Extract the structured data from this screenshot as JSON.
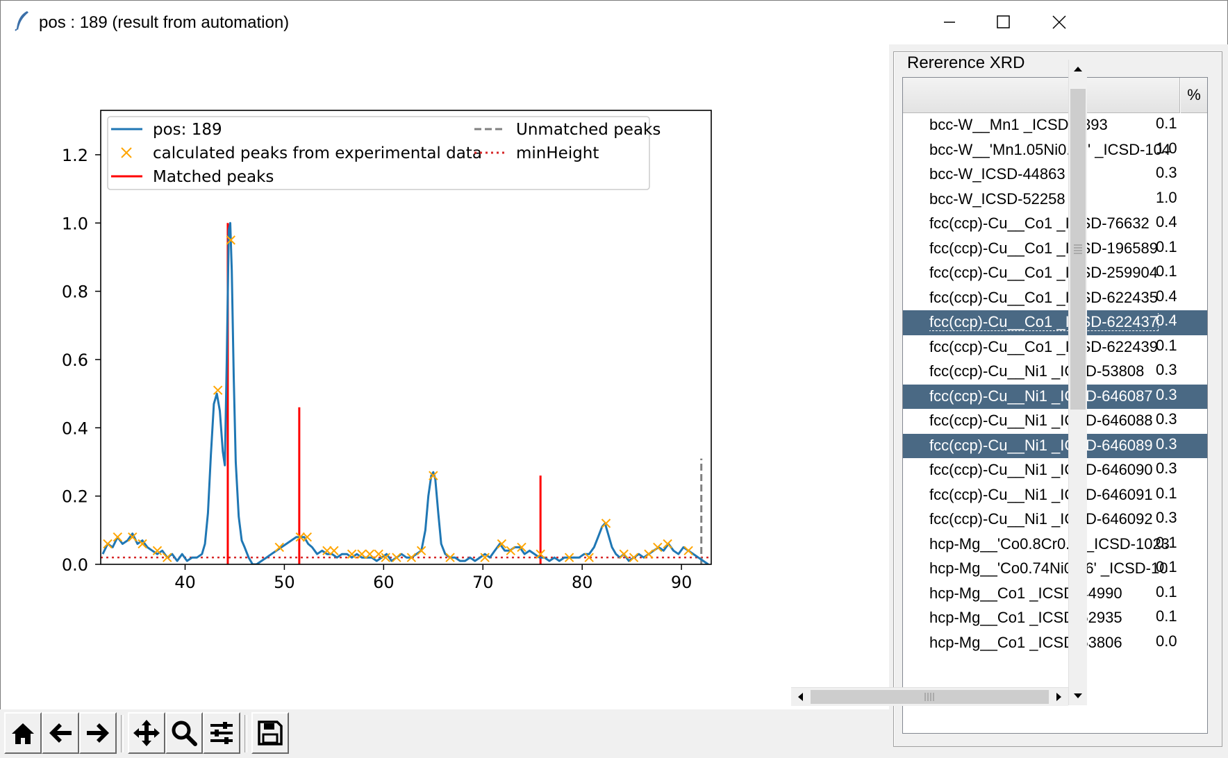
{
  "window": {
    "title": "pos : 189 (result from automation)"
  },
  "panel": {
    "group_label": "Rererence XRD",
    "columns": {
      "name": "",
      "pct": "%"
    },
    "rows": [
      {
        "name": "bcc-W__Mn1 _ICSD-5393",
        "pct": "0.1",
        "selected": false
      },
      {
        "name": "bcc-W__'Mn1.05Ni0.95' _ICSD-104",
        "pct": "1.0",
        "selected": false
      },
      {
        "name": "bcc-W_ICSD-44863",
        "pct": "0.3",
        "selected": false
      },
      {
        "name": "bcc-W_ICSD-52258",
        "pct": "1.0",
        "selected": false
      },
      {
        "name": "fcc(ccp)-Cu__Co1 _ICSD-76632",
        "pct": "0.4",
        "selected": false
      },
      {
        "name": "fcc(ccp)-Cu__Co1 _ICSD-196589",
        "pct": "0.1",
        "selected": false
      },
      {
        "name": "fcc(ccp)-Cu__Co1 _ICSD-259904",
        "pct": "0.1",
        "selected": false
      },
      {
        "name": "fcc(ccp)-Cu__Co1 _ICSD-622435",
        "pct": "0.4",
        "selected": false
      },
      {
        "name": "fcc(ccp)-Cu__Co1 _ICSD-622437",
        "pct": "0.4",
        "selected": true,
        "focused": true
      },
      {
        "name": "fcc(ccp)-Cu__Co1 _ICSD-622439",
        "pct": "0.1",
        "selected": false
      },
      {
        "name": "fcc(ccp)-Cu__Ni1 _ICSD-53808",
        "pct": "0.3",
        "selected": false
      },
      {
        "name": "fcc(ccp)-Cu__Ni1 _ICSD-646087",
        "pct": "0.3",
        "selected": true
      },
      {
        "name": "fcc(ccp)-Cu__Ni1 _ICSD-646088",
        "pct": "0.3",
        "selected": false
      },
      {
        "name": "fcc(ccp)-Cu__Ni1 _ICSD-646089",
        "pct": "0.3",
        "selected": true
      },
      {
        "name": "fcc(ccp)-Cu__Ni1 _ICSD-646090",
        "pct": "0.3",
        "selected": false
      },
      {
        "name": "fcc(ccp)-Cu__Ni1 _ICSD-646091",
        "pct": "0.1",
        "selected": false
      },
      {
        "name": "fcc(ccp)-Cu__Ni1 _ICSD-646092",
        "pct": "0.3",
        "selected": false
      },
      {
        "name": "hcp-Mg__'Co0.8Cr0.2' _ICSD-1023",
        "pct": "0.1",
        "selected": false
      },
      {
        "name": "hcp-Mg__'Co0.74Ni0.26' _ICSD-10",
        "pct": "0.1",
        "selected": false
      },
      {
        "name": "hcp-Mg__Co1 _ICSD-44990",
        "pct": "0.1",
        "selected": false
      },
      {
        "name": "hcp-Mg__Co1 _ICSD-52935",
        "pct": "0.1",
        "selected": false
      },
      {
        "name": "hcp-Mg__Co1 _ICSD-53806",
        "pct": "0.0",
        "selected": false
      }
    ]
  },
  "toolbar": {
    "buttons": [
      {
        "name": "home-button",
        "icon": "home-icon"
      },
      {
        "name": "back-button",
        "icon": "arrow-left-icon"
      },
      {
        "name": "forward-button",
        "icon": "arrow-right-icon"
      },
      {
        "name": "pan-button",
        "icon": "move-icon"
      },
      {
        "name": "zoom-button",
        "icon": "magnifier-icon"
      },
      {
        "name": "configure-subplots-button",
        "icon": "sliders-icon"
      },
      {
        "name": "save-figure-button",
        "icon": "floppy-disk-icon"
      }
    ]
  },
  "chart_data": {
    "type": "line",
    "title": "",
    "xlabel": "",
    "ylabel": "",
    "xlim": [
      31.5,
      93
    ],
    "ylim": [
      0,
      1.33
    ],
    "xticks": [
      "40",
      "50",
      "60",
      "70",
      "80",
      "90"
    ],
    "yticks": [
      "0.0",
      "0.2",
      "0.4",
      "0.6",
      "0.8",
      "1.0",
      "1.2"
    ],
    "grid": false,
    "legend_position": "upper",
    "colors": {
      "line": "#1f77b4",
      "peaks": "#ffa500",
      "matched": "#ff0000",
      "unmatched": "#808080",
      "minheight": "#d62728"
    },
    "legend": [
      "pos: 189",
      "calculated peaks from experimental data",
      "Matched peaks",
      "Unmatched peaks",
      "minHeight"
    ],
    "series": [
      {
        "name": "pos: 189",
        "style": "line",
        "x": [
          31.7,
          32.2,
          32.7,
          33.2,
          33.7,
          34.2,
          34.7,
          35.2,
          35.7,
          36.2,
          36.7,
          37.2,
          37.7,
          38.2,
          38.7,
          39.2,
          39.7,
          40.2,
          40.7,
          41.2,
          41.7,
          42.0,
          42.3,
          42.6,
          42.9,
          43.2,
          43.5,
          43.8,
          44.0,
          44.2,
          44.4,
          44.55,
          44.7,
          44.9,
          45.1,
          45.4,
          45.7,
          46.0,
          46.4,
          46.8,
          47.2,
          47.7,
          48.2,
          48.7,
          49.2,
          49.7,
          50.2,
          50.7,
          51.2,
          51.6,
          52.0,
          52.4,
          52.8,
          53.3,
          53.8,
          54.3,
          54.8,
          55.3,
          55.8,
          56.3,
          56.8,
          57.3,
          57.8,
          58.3,
          58.8,
          59.3,
          59.8,
          60.3,
          60.8,
          61.3,
          61.8,
          62.3,
          62.8,
          63.3,
          63.8,
          64.2,
          64.5,
          64.8,
          65.0,
          65.2,
          65.5,
          65.8,
          66.2,
          66.7,
          67.2,
          67.7,
          68.2,
          68.7,
          69.2,
          69.7,
          70.2,
          70.7,
          71.2,
          71.7,
          72.2,
          72.7,
          73.2,
          73.7,
          74.2,
          74.7,
          75.2,
          75.7,
          76.2,
          76.7,
          77.2,
          77.7,
          78.2,
          78.7,
          79.2,
          79.7,
          80.2,
          80.7,
          81.2,
          81.6,
          82.0,
          82.3,
          82.6,
          83.0,
          83.4,
          83.8,
          84.2,
          84.7,
          85.2,
          85.7,
          86.2,
          86.7,
          87.2,
          87.7,
          88.2,
          88.7,
          89.2,
          89.7,
          90.2,
          90.7,
          91.2,
          91.7,
          92.2,
          92.7
        ],
        "y": [
          0.03,
          0.06,
          0.05,
          0.08,
          0.06,
          0.07,
          0.09,
          0.06,
          0.07,
          0.05,
          0.04,
          0.03,
          0.04,
          0.02,
          0.03,
          0.01,
          0.03,
          0.01,
          0.02,
          0.02,
          0.03,
          0.06,
          0.15,
          0.32,
          0.47,
          0.5,
          0.45,
          0.33,
          0.29,
          0.6,
          0.98,
          1.0,
          0.86,
          0.55,
          0.3,
          0.14,
          0.07,
          0.05,
          0.02,
          0.0,
          0.0,
          0.01,
          0.02,
          0.03,
          0.04,
          0.05,
          0.06,
          0.07,
          0.08,
          0.08,
          0.08,
          0.06,
          0.05,
          0.03,
          0.04,
          0.03,
          0.03,
          0.02,
          0.03,
          0.03,
          0.02,
          0.03,
          0.02,
          0.02,
          0.02,
          0.01,
          0.02,
          0.03,
          0.01,
          0.02,
          0.03,
          0.02,
          0.02,
          0.03,
          0.04,
          0.1,
          0.2,
          0.26,
          0.27,
          0.25,
          0.15,
          0.06,
          0.03,
          0.02,
          0.02,
          0.01,
          0.01,
          0.02,
          0.01,
          0.02,
          0.03,
          0.02,
          0.04,
          0.06,
          0.04,
          0.04,
          0.05,
          0.05,
          0.03,
          0.04,
          0.03,
          0.02,
          0.02,
          0.01,
          0.02,
          0.01,
          0.02,
          0.02,
          0.02,
          0.02,
          0.03,
          0.03,
          0.05,
          0.08,
          0.11,
          0.12,
          0.09,
          0.05,
          0.03,
          0.02,
          0.03,
          0.01,
          0.02,
          0.03,
          0.02,
          0.03,
          0.04,
          0.05,
          0.04,
          0.06,
          0.04,
          0.03,
          0.05,
          0.04,
          0.03,
          0.02,
          0.01,
          0.0
        ]
      },
      {
        "name": "calculated peaks from experimental data",
        "style": "marker-x",
        "x": [
          32.2,
          33.2,
          34.7,
          35.7,
          37.2,
          38.2,
          43.3,
          44.6,
          49.5,
          51.6,
          52.3,
          54.3,
          55.0,
          56.8,
          57.8,
          58.6,
          59.5,
          60.2,
          61.3,
          62.8,
          63.8,
          65.0,
          66.7,
          70.2,
          71.9,
          72.8,
          73.9,
          75.8,
          78.7,
          80.7,
          82.4,
          84.2,
          85.2,
          86.7,
          87.6,
          88.6,
          90.7
        ],
        "y": [
          0.06,
          0.08,
          0.08,
          0.06,
          0.04,
          0.02,
          0.51,
          0.95,
          0.05,
          0.08,
          0.08,
          0.04,
          0.04,
          0.03,
          0.03,
          0.03,
          0.03,
          0.02,
          0.02,
          0.02,
          0.04,
          0.26,
          0.02,
          0.02,
          0.06,
          0.04,
          0.05,
          0.03,
          0.02,
          0.02,
          0.12,
          0.03,
          0.02,
          0.03,
          0.05,
          0.06,
          0.04
        ]
      },
      {
        "name": "Matched peaks",
        "style": "vlines",
        "x": [
          44.3,
          51.5,
          75.8
        ],
        "y": [
          1.0,
          0.46,
          0.26
        ]
      },
      {
        "name": "Unmatched peaks",
        "style": "vlines-dashed",
        "x": [
          92.0
        ],
        "y": [
          0.31
        ]
      },
      {
        "name": "minHeight",
        "style": "hline-dotted",
        "x": [
          31.5,
          93
        ],
        "y": [
          0.02,
          0.02
        ]
      }
    ]
  }
}
